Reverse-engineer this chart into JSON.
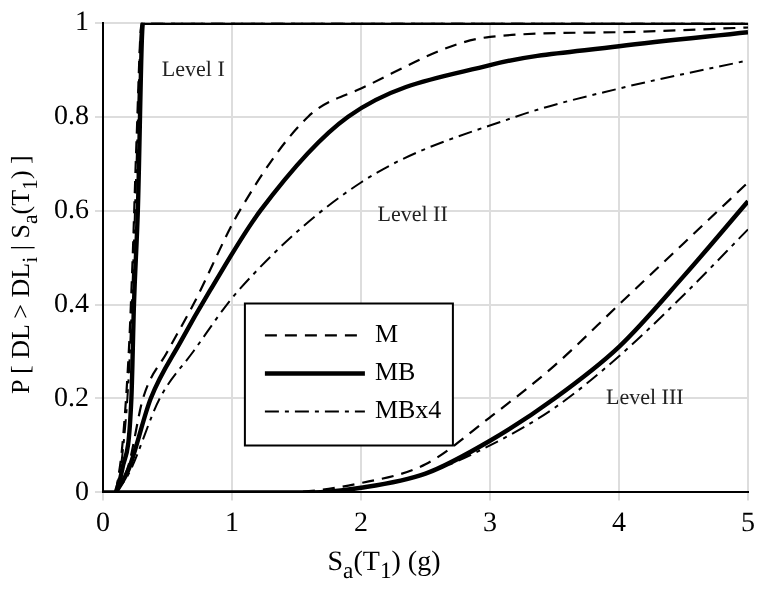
{
  "chart_data": {
    "type": "line",
    "xlabel": "S$_{a}$(T$_{1}$)  (g)",
    "ylabel": "P [ DL > DL$_{i}$ | S$_{a}$(T$_{1}$) ]",
    "xlim": [
      0,
      5
    ],
    "xticks": [
      0,
      1,
      2,
      3,
      4,
      5
    ],
    "ylim": [
      0,
      1
    ],
    "yticks": [
      0,
      0.2,
      0.4,
      0.6,
      0.8,
      1
    ],
    "grid": true,
    "legend": "bottom left",
    "marker": "none",
    "annotations": [
      "Level I",
      "Level II",
      "Level III"
    ],
    "series": [
      {
        "name": "M",
        "color": "#000000",
        "line_style": "dashed",
        "x": [
          0.1,
          0.15,
          0.2,
          0.23,
          0.26,
          0.3,
          5
        ],
        "values": [
          0,
          0.1,
          0.3,
          0.5,
          0.75,
          1,
          1
        ]
      },
      {
        "name": "MB",
        "color": "#000000",
        "line_style": "solid",
        "x": [
          0.1,
          0.15,
          0.22,
          0.24,
          0.27,
          0.31,
          5
        ],
        "values": [
          0,
          0.05,
          0.2,
          0.4,
          0.6,
          1,
          1
        ]
      },
      {
        "name": "MBx4",
        "color": "#000000",
        "line_style": "dashdot",
        "x": [
          0.1,
          0.15,
          0.2,
          0.23,
          0.26,
          0.3,
          5
        ],
        "values": [
          0,
          0.08,
          0.25,
          0.45,
          0.7,
          1,
          1
        ]
      },
      {
        "color": "#000000",
        "line_style": "dashed",
        "x": [
          0.1,
          0.2,
          0.31,
          0.5,
          0.7,
          1.06,
          1.59,
          2,
          3,
          4,
          5
        ],
        "values": [
          0,
          0.06,
          0.2,
          0.3,
          0.4,
          0.6,
          0.8,
          0.86,
          0.97,
          0.98,
          0.99
        ]
      },
      {
        "color": "#000000",
        "line_style": "solid",
        "x": [
          0.1,
          0.2,
          0.37,
          0.6,
          0.83,
          1.22,
          1.9,
          3,
          4,
          5
        ],
        "values": [
          0,
          0.05,
          0.2,
          0.32,
          0.43,
          0.6,
          0.8,
          0.91,
          0.95,
          0.98
        ]
      },
      {
        "color": "#000000",
        "line_style": "dashdot",
        "x": [
          0.1,
          0.2,
          0.44,
          0.7,
          1.05,
          2,
          3.2,
          4,
          5
        ],
        "values": [
          0,
          0.04,
          0.2,
          0.3,
          0.43,
          0.66,
          0.8,
          0.86,
          0.92
        ]
      },
      {
        "color": "#000000",
        "line_style": "dashed",
        "x": [
          0,
          1.4,
          2,
          2.5,
          3,
          3.5,
          4,
          4.5,
          5
        ],
        "values": [
          0,
          0,
          0.02,
          0.06,
          0.16,
          0.27,
          0.4,
          0.53,
          0.66
        ]
      },
      {
        "color": "#000000",
        "line_style": "solid",
        "x": [
          0,
          1.6,
          2,
          2.5,
          3,
          3.5,
          4,
          4.5,
          5
        ],
        "values": [
          0,
          0,
          0.01,
          0.04,
          0.11,
          0.2,
          0.31,
          0.46,
          0.62
        ]
      },
      {
        "color": "#000000",
        "line_style": "dashdot",
        "x": [
          0,
          1.8,
          2,
          2.5,
          3,
          3.5,
          4,
          4.5,
          5
        ],
        "values": [
          0,
          0,
          0.01,
          0.04,
          0.1,
          0.18,
          0.29,
          0.42,
          0.56
        ]
      }
    ]
  }
}
